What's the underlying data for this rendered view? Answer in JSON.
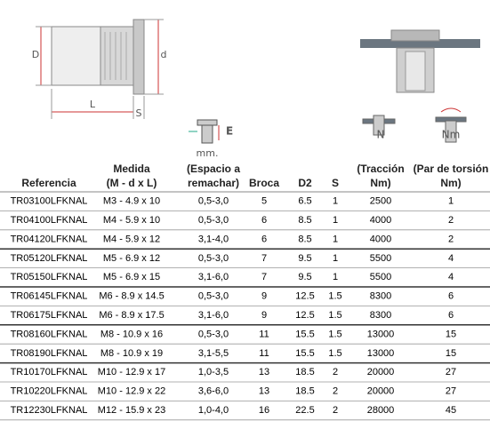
{
  "figures": {
    "dim_D": "D",
    "dim_d": "d",
    "dim_L": "L",
    "dim_S": "S",
    "icon_E": "E",
    "icon_mm": "mm.",
    "icon_N": "N",
    "icon_Nm": "Nm"
  },
  "table": {
    "columns": [
      [
        "Referencia"
      ],
      [
        "Medida",
        "(M - d x L)"
      ],
      [
        "(Espacio a",
        "remachar)"
      ],
      [
        "Broca"
      ],
      [
        "D2"
      ],
      [
        "S"
      ],
      [
        "(Tracción",
        "Nm)"
      ],
      [
        "(Par de torsión",
        "Nm)"
      ]
    ],
    "rows": [
      [
        "TR03100LFKNAL",
        "M3 - 4.9 x 10",
        "0,5-3,0",
        "5",
        "6.5",
        "1",
        "2500",
        "1"
      ],
      [
        "TR04100LFKNAL",
        "M4 - 5.9 x 10",
        "0,5-3,0",
        "6",
        "8.5",
        "1",
        "4000",
        "2"
      ],
      [
        "TR04120LFKNAL",
        "M4 - 5.9 x 12",
        "3,1-4,0",
        "6",
        "8.5",
        "1",
        "4000",
        "2"
      ],
      [
        "TR05120LFKNAL",
        "M5 - 6.9 x 12",
        "0,5-3,0",
        "7",
        "9.5",
        "1",
        "5500",
        "4"
      ],
      [
        "TR05150LFKNAL",
        "M5 - 6.9 x 15",
        "3,1-6,0",
        "7",
        "9.5",
        "1",
        "5500",
        "4"
      ],
      [
        "TR06145LFKNAL",
        "M6 - 8.9 x 14.5",
        "0,5-3,0",
        "9",
        "12.5",
        "1.5",
        "8300",
        "6"
      ],
      [
        "TR06175LFKNAL",
        "M6 - 8.9 x 17.5",
        "3,1-6,0",
        "9",
        "12.5",
        "1.5",
        "8300",
        "6"
      ],
      [
        "TR08160LFKNAL",
        "M8 - 10.9 x 16",
        "0,5-3,0",
        "11",
        "15.5",
        "1.5",
        "13000",
        "15"
      ],
      [
        "TR08190LFKNAL",
        "M8 - 10.9 x 19",
        "3,1-5,5",
        "11",
        "15.5",
        "1.5",
        "13000",
        "15"
      ],
      [
        "TR10170LFKNAL",
        "M10 - 12.9 x 17",
        "1,0-3,5",
        "13",
        "18.5",
        "2",
        "20000",
        "27"
      ],
      [
        "TR10220LFKNAL",
        "M10 - 12.9 x 22",
        "3,6-6,0",
        "13",
        "18.5",
        "2",
        "20000",
        "27"
      ],
      [
        "TR12230LFKNAL",
        "M12 - 15.9 x 23",
        "1,0-4,0",
        "16",
        "22.5",
        "2",
        "28000",
        "45"
      ]
    ]
  }
}
